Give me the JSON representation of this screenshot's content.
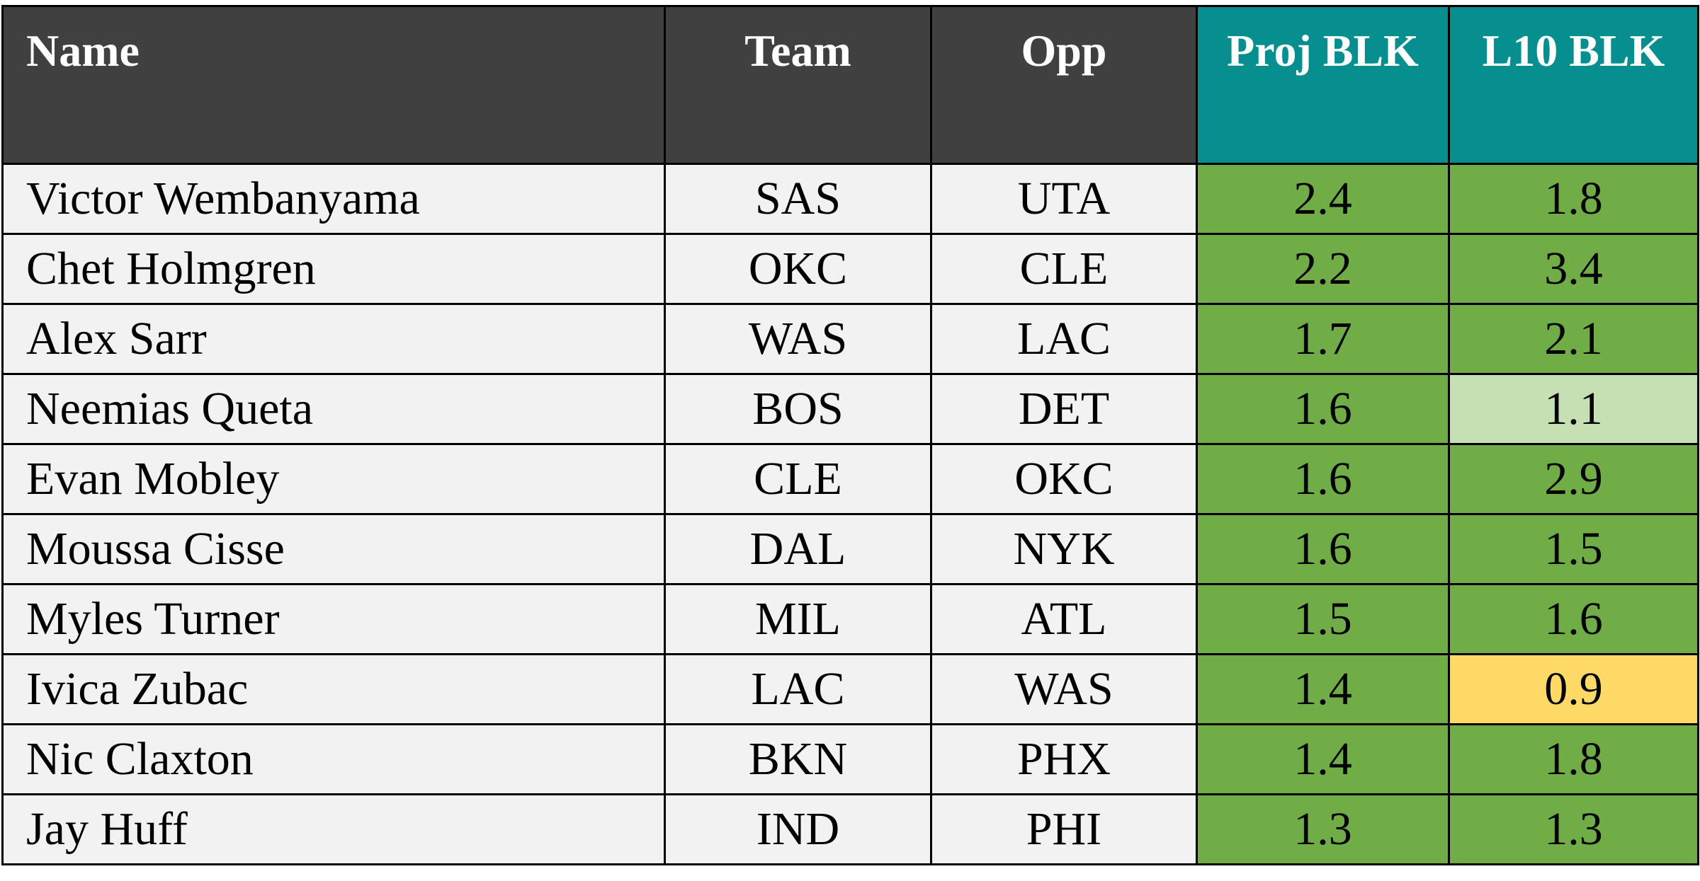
{
  "table": {
    "header": [
      "Name",
      "Team",
      "Opp",
      "Proj BLK",
      "L10 BLK"
    ],
    "rows": [
      [
        "Victor Wembanyama",
        "SAS",
        "UTA",
        "2.4",
        "1.8"
      ],
      [
        "Chet Holmgren",
        "OKC",
        "CLE",
        "2.2",
        "3.4"
      ],
      [
        "Alex Sarr",
        "WAS",
        "LAC",
        "1.7",
        "2.1"
      ],
      [
        "Neemias Queta",
        "BOS",
        "DET",
        "1.6",
        "1.1"
      ],
      [
        "Evan Mobley",
        "CLE",
        "OKC",
        "1.6",
        "2.9"
      ],
      [
        "Moussa Cisse",
        "DAL",
        "NYK",
        "1.6",
        "1.5"
      ],
      [
        "Myles Turner",
        "MIL",
        "ATL",
        "1.5",
        "1.6"
      ],
      [
        "Ivica Zubac",
        "LAC",
        "WAS",
        "1.4",
        "0.9"
      ],
      [
        "Nic Claxton",
        "BKN",
        "PHX",
        "1.4",
        "1.8"
      ],
      [
        "Jay Huff",
        "IND",
        "PHI",
        "1.3",
        "1.3"
      ]
    ],
    "header_fills": [
      "#404040",
      "#404040",
      "#404040",
      "#078f8f",
      "#078f8f"
    ],
    "row_fills": [
      [
        "#f2f2f2",
        "#f2f2f2",
        "#f2f2f2",
        "#70ad47",
        "#70ad47"
      ],
      [
        "#f2f2f2",
        "#f2f2f2",
        "#f2f2f2",
        "#70ad47",
        "#70ad47"
      ],
      [
        "#f2f2f2",
        "#f2f2f2",
        "#f2f2f2",
        "#70ad47",
        "#70ad47"
      ],
      [
        "#f2f2f2",
        "#f2f2f2",
        "#f2f2f2",
        "#70ad47",
        "#c6e0b4"
      ],
      [
        "#f2f2f2",
        "#f2f2f2",
        "#f2f2f2",
        "#70ad47",
        "#70ad47"
      ],
      [
        "#f2f2f2",
        "#f2f2f2",
        "#f2f2f2",
        "#70ad47",
        "#70ad47"
      ],
      [
        "#f2f2f2",
        "#f2f2f2",
        "#f2f2f2",
        "#70ad47",
        "#70ad47"
      ],
      [
        "#f2f2f2",
        "#f2f2f2",
        "#f2f2f2",
        "#70ad47",
        "#ffd966"
      ],
      [
        "#f2f2f2",
        "#f2f2f2",
        "#f2f2f2",
        "#70ad47",
        "#70ad47"
      ],
      [
        "#f2f2f2",
        "#f2f2f2",
        "#f2f2f2",
        "#70ad47",
        "#70ad47"
      ]
    ]
  }
}
